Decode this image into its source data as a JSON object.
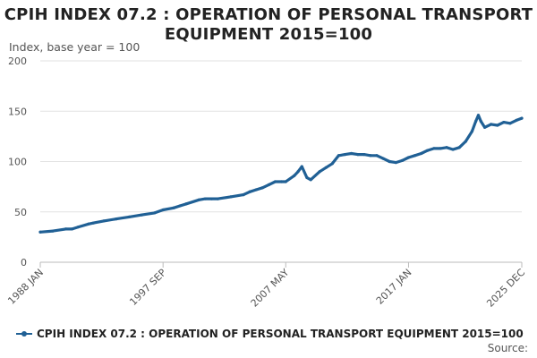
{
  "chart_data": {
    "type": "line",
    "title_lines": [
      "CPIH INDEX 07.2 : OPERATION OF PERSONAL TRANSPORT",
      "EQUIPMENT 2015=100"
    ],
    "ylabel": "Index, base year = 100",
    "ylim": [
      0,
      200
    ],
    "yticks": [
      0,
      50,
      100,
      150,
      200
    ],
    "xrange": [
      1988.0,
      2025.92
    ],
    "xticks": [
      {
        "label": "1988 JAN",
        "x": 1988.0
      },
      {
        "label": "1997 SEP",
        "x": 1997.67
      },
      {
        "label": "2007 MAY",
        "x": 2007.33
      },
      {
        "label": "2017 JAN",
        "x": 2017.0
      },
      {
        "label": "2025 DEC",
        "x": 2025.92
      }
    ],
    "grid": true,
    "series": [
      {
        "name": "CPIH INDEX 07.2 : OPERATION OF PERSONAL TRANSPORT EQUIPMENT 2015=100",
        "color": "#206095",
        "x": [
          1988.0,
          1989.0,
          1990.0,
          1990.5,
          1991.0,
          1991.8,
          1992.2,
          1993.0,
          1994.0,
          1995.0,
          1996.0,
          1997.0,
          1997.67,
          1998.5,
          1999.0,
          1999.5,
          2000.5,
          2001.0,
          2001.5,
          2002.0,
          2003.0,
          2004.0,
          2004.5,
          2005.0,
          2005.5,
          2006.0,
          2006.5,
          2007.0,
          2007.33,
          2008.0,
          2008.3,
          2008.6,
          2009.0,
          2009.3,
          2010.0,
          2010.5,
          2011.0,
          2011.5,
          2012.0,
          2012.5,
          2013.0,
          2013.5,
          2014.0,
          2014.5,
          2015.0,
          2015.5,
          2016.0,
          2016.5,
          2017.0,
          2017.5,
          2018.0,
          2018.5,
          2019.0,
          2019.5,
          2020.0,
          2020.5,
          2021.0,
          2021.5,
          2022.0,
          2022.3,
          2022.5,
          2022.7,
          2023.0,
          2023.5,
          2024.0,
          2024.5,
          2025.0,
          2025.5,
          2025.92
        ],
        "values": [
          30,
          31,
          33,
          33,
          35,
          38,
          39,
          41,
          43,
          45,
          47,
          49,
          52,
          54,
          56,
          58,
          62,
          63,
          63,
          63,
          65,
          67,
          70,
          72,
          74,
          77,
          80,
          80,
          80,
          86,
          90,
          95,
          84,
          82,
          90,
          94,
          98,
          106,
          107,
          108,
          107,
          107,
          106,
          106,
          103,
          100,
          99,
          101,
          104,
          106,
          108,
          111,
          113,
          113,
          114,
          112,
          114,
          120,
          130,
          140,
          146,
          140,
          134,
          137,
          136,
          139,
          138,
          141,
          143
        ]
      }
    ]
  },
  "legend_label": "CPIH INDEX 07.2 : OPERATION OF PERSONAL TRANSPORT EQUIPMENT 2015=100",
  "source_label": "Source:"
}
